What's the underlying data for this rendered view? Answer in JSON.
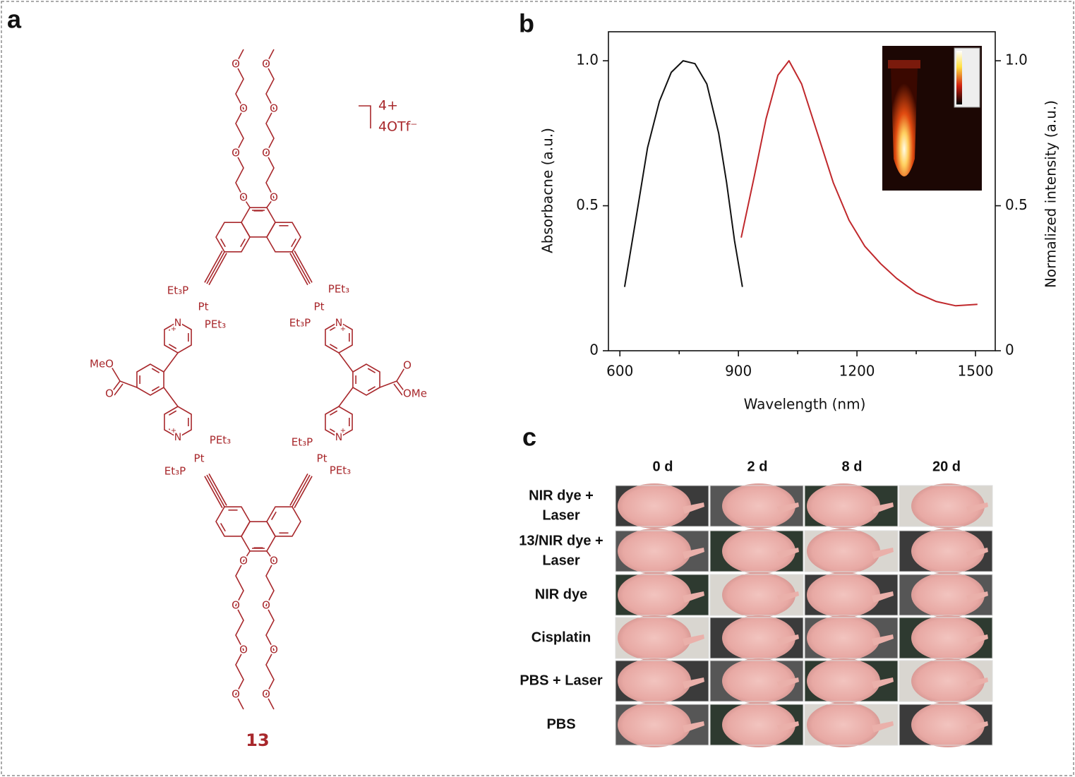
{
  "panel_a": {
    "label": "a",
    "charge": "4+",
    "counterion": "4OTf⁻",
    "compound": "13",
    "atoms": {
      "oxygen": "O",
      "methoxy_left": "MeO",
      "methoxy_right": "OMe",
      "phosphine_left": "Et₃P",
      "platinum": "Pt",
      "phosphine_right": "PEt₃",
      "nitrogen": "N",
      "plus": "+"
    }
  },
  "chart_data": {
    "type": "line",
    "panel_label": "b",
    "x_label": "Wavelength (nm)",
    "y_label": "Absorbacne  (a.u.)",
    "y2_label": "Normalized intensity (a.u.)",
    "xlim": [
      571,
      1550
    ],
    "xticks": [
      600,
      900,
      1200,
      1500
    ],
    "xminorticks": [
      750,
      1050,
      1350
    ],
    "ylim": [
      0,
      1.1
    ],
    "yticks": [
      0,
      0.5,
      {
        "value": 1,
        "label": "1.0"
      }
    ],
    "y2lim": [
      0,
      1.1
    ],
    "y2ticks": [
      0,
      0.5,
      {
        "value": 1,
        "label": "1.0"
      }
    ],
    "grid": false,
    "series": [
      {
        "color": "#111111",
        "x": [
          612,
          640,
          670,
          700,
          730,
          760,
          790,
          820,
          850,
          870,
          890,
          910
        ],
        "values": [
          0.22,
          0.45,
          0.7,
          0.86,
          0.96,
          1.0,
          0.99,
          0.92,
          0.75,
          0.58,
          0.38,
          0.22
        ]
      },
      {
        "color": "#c0282c",
        "axis": "y2",
        "x": [
          907,
          940,
          970,
          1000,
          1028,
          1060,
          1100,
          1140,
          1180,
          1220,
          1260,
          1300,
          1350,
          1400,
          1450,
          1505
        ],
        "values": [
          0.39,
          0.6,
          0.8,
          0.95,
          1.0,
          0.92,
          0.75,
          0.58,
          0.45,
          0.36,
          0.3,
          0.25,
          0.2,
          0.17,
          0.155,
          0.16
        ]
      }
    ]
  },
  "panel_c": {
    "label": "c",
    "columns": [
      "0 d",
      "2 d",
      "8 d",
      "20 d"
    ],
    "rows": [
      [
        "NIR dye +",
        "Laser"
      ],
      [
        "13/NIR dye +",
        "Laser"
      ],
      [
        "NIR dye"
      ],
      [
        "Cisplatin"
      ],
      [
        "PBS + Laser"
      ],
      [
        "PBS"
      ]
    ]
  }
}
